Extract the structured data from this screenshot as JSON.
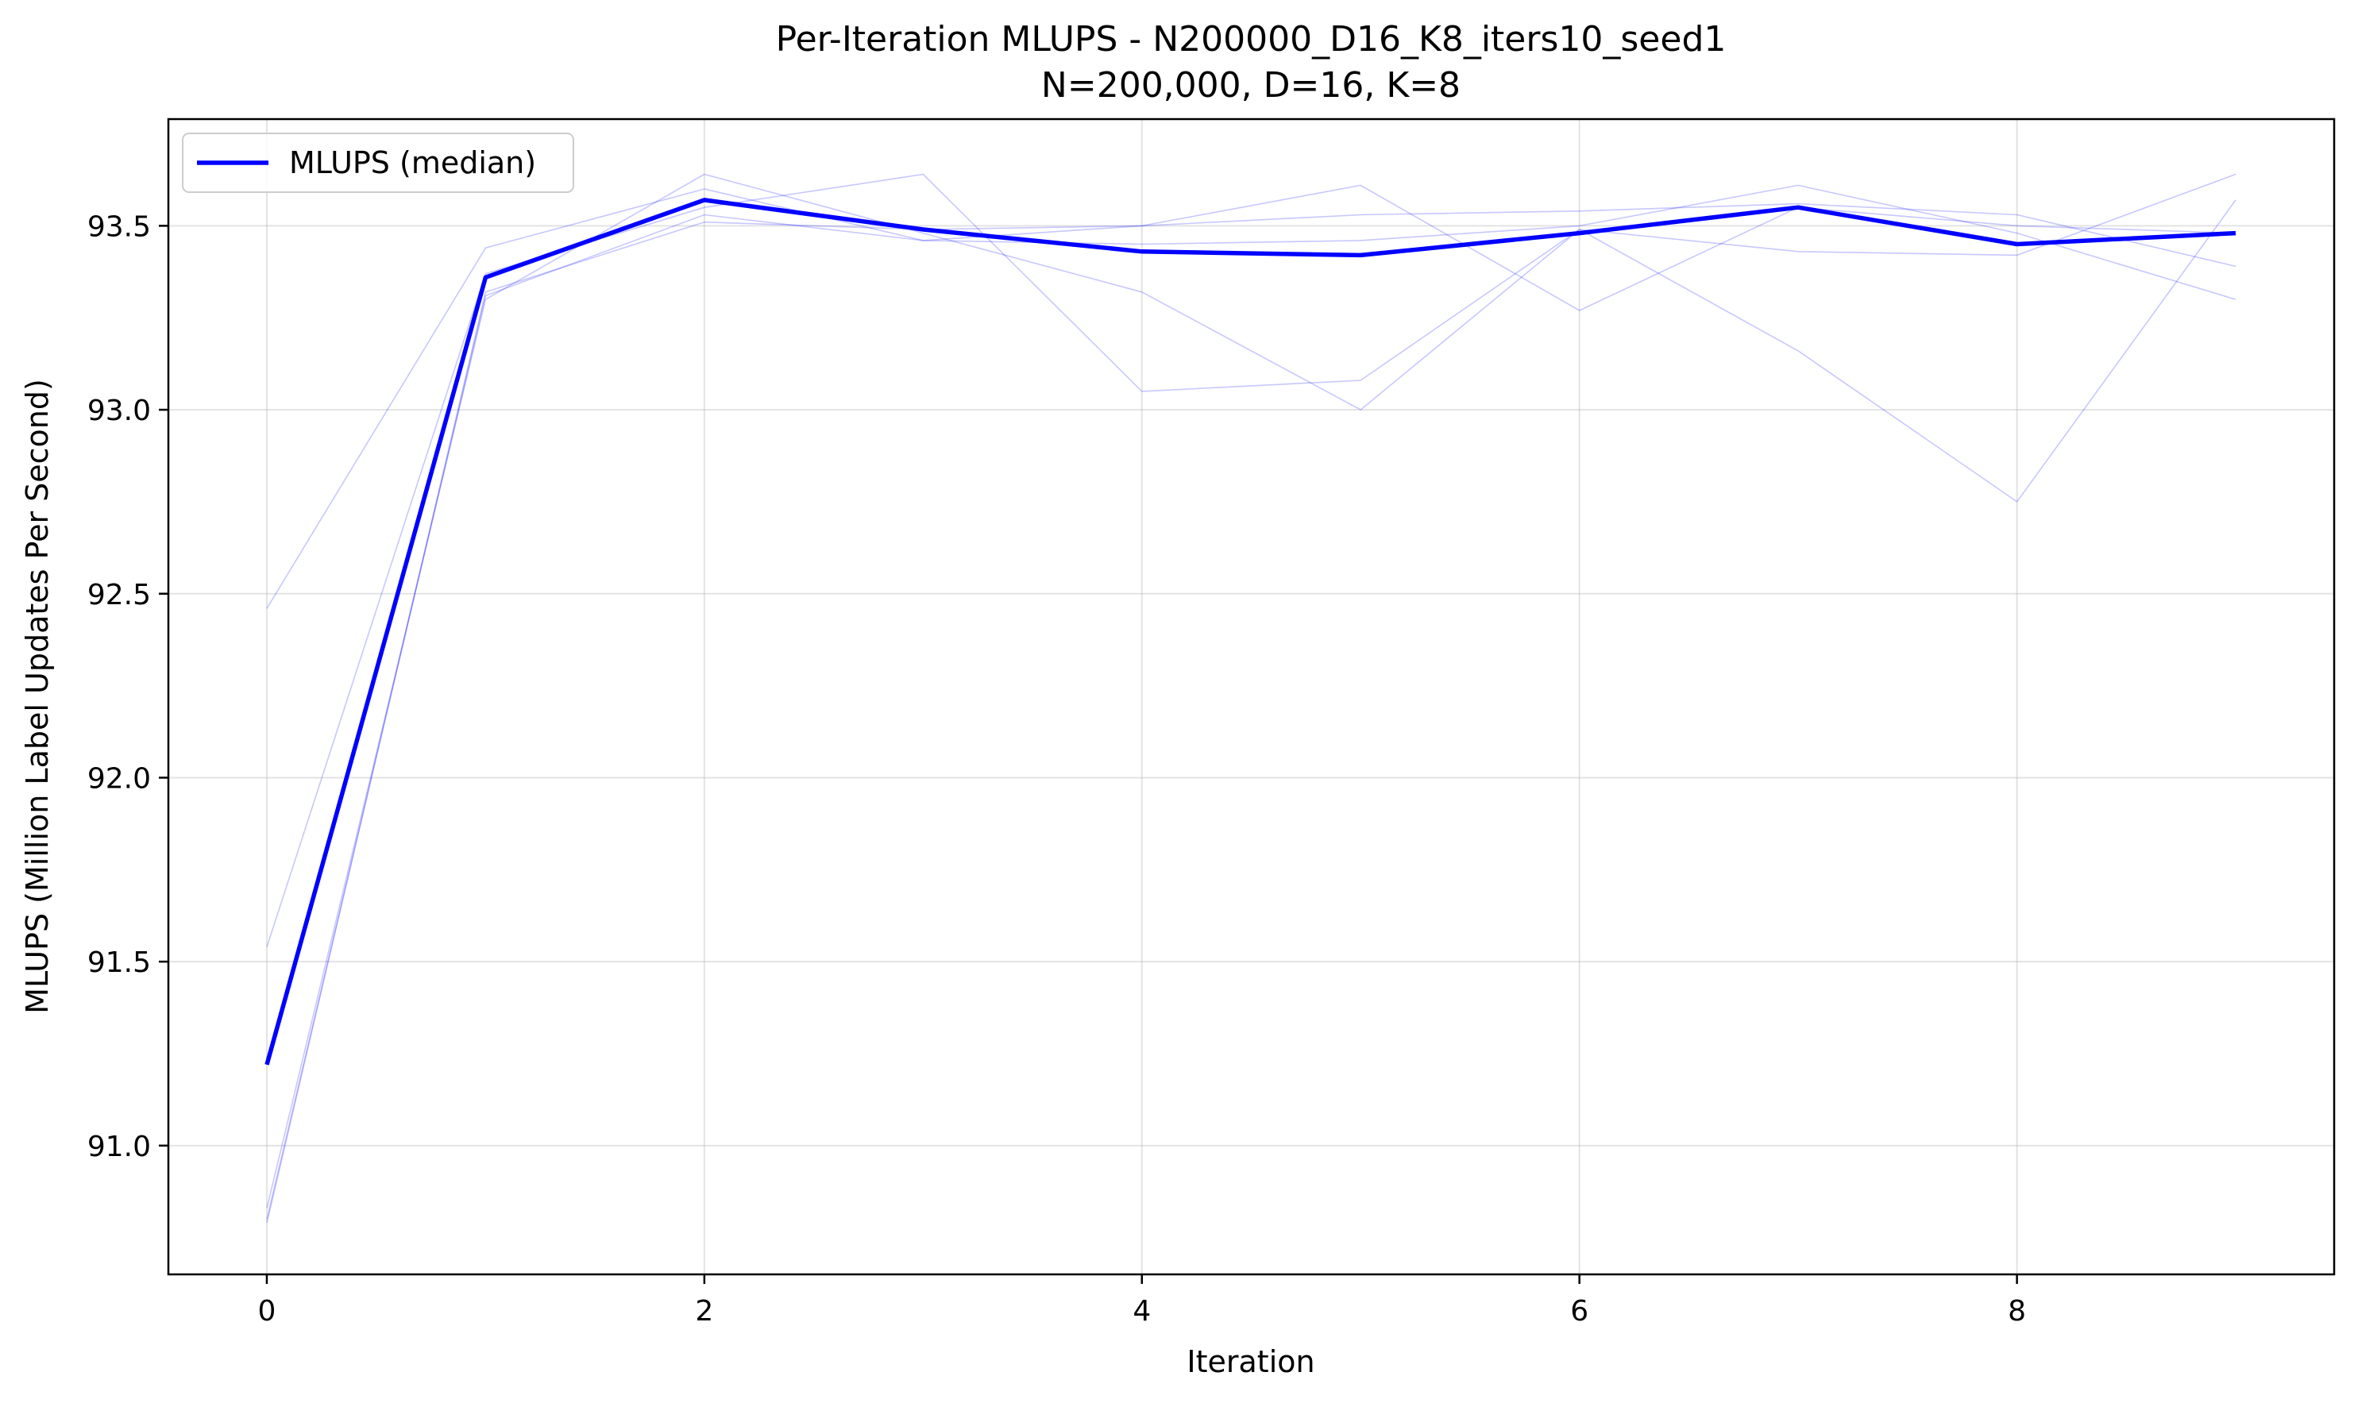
{
  "chart_data": {
    "type": "line",
    "title": "Per-Iteration MLUPS - N200000_D16_K8_iters10_seed1",
    "subtitle": "N=200,000, D=16, K=8",
    "xlabel": "Iteration",
    "ylabel": "MLUPS (Million Label Updates Per Second)",
    "xlim": [
      -0.45,
      9.45
    ],
    "ylim": [
      90.65,
      93.79
    ],
    "xticks": [
      0,
      2,
      4,
      6,
      8
    ],
    "yticks": [
      91.0,
      91.5,
      92.0,
      92.5,
      93.0,
      93.5
    ],
    "grid": true,
    "legend_position": "top-left",
    "x": [
      0,
      1,
      2,
      3,
      4,
      5,
      6,
      7,
      8,
      9
    ],
    "series": [
      {
        "name": "MLUPS (median)",
        "color": "#0000ff",
        "emphasis": true,
        "values": [
          91.22,
          93.36,
          93.57,
          93.49,
          93.43,
          93.42,
          93.48,
          93.55,
          93.45,
          93.48
        ]
      },
      {
        "color": "#0000ff",
        "emphasis": false,
        "values": [
          92.46,
          93.44,
          93.6,
          93.46,
          93.45,
          93.46,
          93.5,
          93.61,
          93.48,
          93.3
        ]
      },
      {
        "color": "#0000ff",
        "emphasis": false,
        "values": [
          91.54,
          93.37,
          93.55,
          93.64,
          93.05,
          93.08,
          93.49,
          93.16,
          92.75,
          93.57
        ]
      },
      {
        "color": "#0000ff",
        "emphasis": false,
        "values": [
          90.83,
          93.3,
          93.64,
          93.48,
          93.32,
          93.0,
          93.49,
          93.43,
          93.42,
          93.64
        ]
      },
      {
        "color": "#0000ff",
        "emphasis": false,
        "values": [
          90.79,
          93.32,
          93.51,
          93.49,
          93.5,
          93.53,
          93.54,
          93.56,
          93.53,
          93.39
        ]
      },
      {
        "color": "#0000ff",
        "emphasis": false,
        "values": [
          90.8,
          93.31,
          93.53,
          93.46,
          93.5,
          93.61,
          93.27,
          93.55,
          93.5,
          93.48
        ]
      }
    ]
  }
}
